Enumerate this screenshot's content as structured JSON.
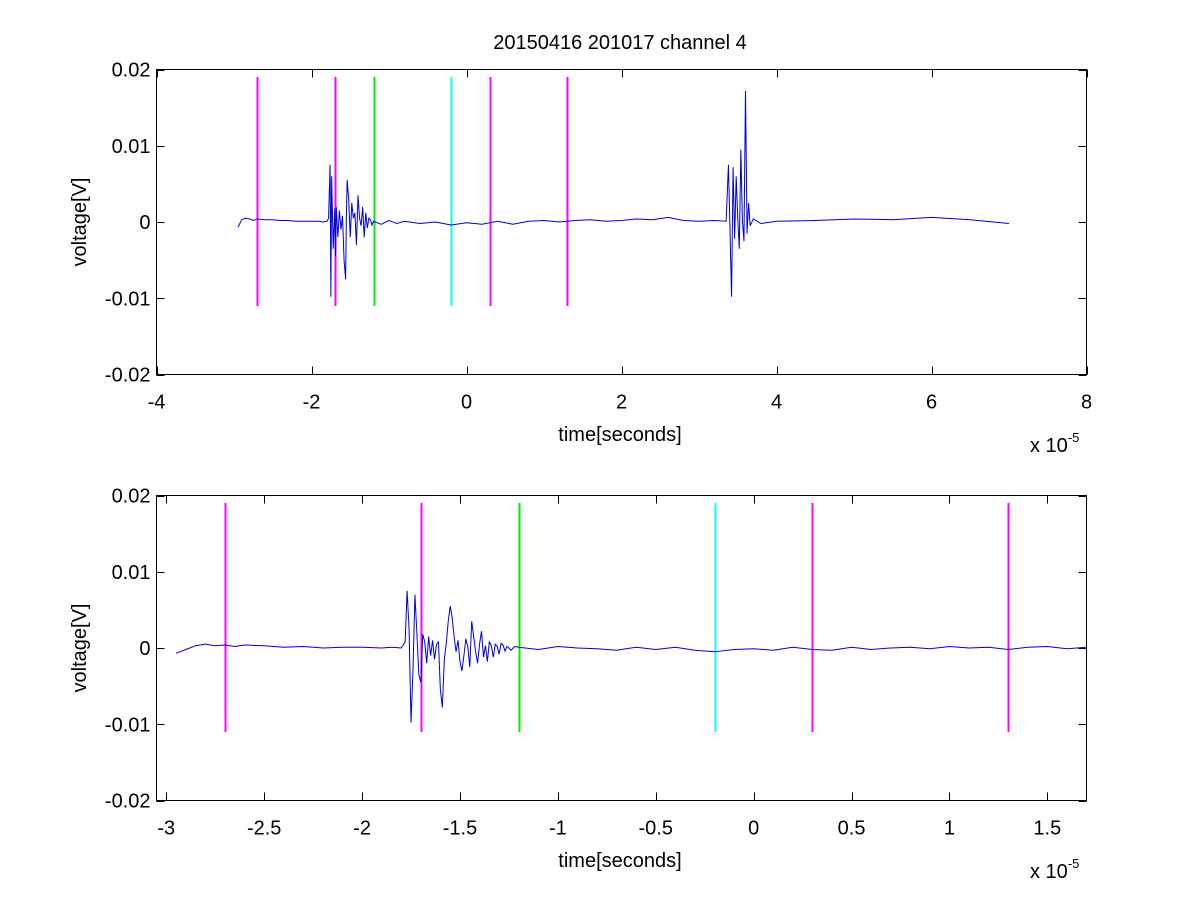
{
  "figure_title": "20150416 201017 channel 4",
  "colors": {
    "signal": "#0000dd",
    "magenta": "#ff00ff",
    "green": "#00ee00",
    "cyan": "#00ffff"
  },
  "chart_data": [
    {
      "type": "line",
      "title": "20150416 201017 channel 4",
      "xlabel": "time[seconds]",
      "ylabel": "voltage[V]",
      "x_multiplier": "x 10",
      "x_exponent": "-5",
      "xlim": [
        -4,
        8
      ],
      "ylim": [
        -0.02,
        0.02
      ],
      "x_ticks": [
        -4,
        -2,
        0,
        2,
        4,
        6,
        8
      ],
      "x_tick_labels": [
        "-4",
        "-2",
        "0",
        "2",
        "4",
        "6",
        "8"
      ],
      "y_ticks": [
        -0.02,
        -0.01,
        0,
        0.01,
        0.02
      ],
      "y_tick_labels": [
        "-0.02",
        "-0.01",
        "0",
        "0.01",
        "0.02"
      ],
      "grid": false,
      "series": [
        {
          "x": [
            -2.95,
            -2.9,
            -2.85,
            -2.8,
            -2.75,
            -2.7,
            -2.6,
            -2.5,
            -2.4,
            -2.3,
            -2.2,
            -2.1,
            -2.0,
            -1.9,
            -1.85,
            -1.8,
            -1.78,
            -1.76,
            -1.75,
            -1.74,
            -1.72,
            -1.7,
            -1.69,
            -1.68,
            -1.66,
            -1.64,
            -1.62,
            -1.6,
            -1.58,
            -1.56,
            -1.55,
            -1.54,
            -1.52,
            -1.5,
            -1.48,
            -1.46,
            -1.44,
            -1.42,
            -1.4,
            -1.38,
            -1.36,
            -1.34,
            -1.32,
            -1.3,
            -1.28,
            -1.26,
            -1.24,
            -1.22,
            -1.2,
            -1.1,
            -1.0,
            -0.9,
            -0.8,
            -0.6,
            -0.4,
            -0.2,
            0.0,
            0.2,
            0.4,
            0.6,
            0.8,
            1.0,
            1.2,
            1.4,
            1.6,
            1.8,
            2.0,
            2.2,
            2.4,
            2.6,
            2.8,
            3.0,
            3.2,
            3.35,
            3.38,
            3.4,
            3.42,
            3.44,
            3.46,
            3.48,
            3.5,
            3.52,
            3.54,
            3.56,
            3.58,
            3.6,
            3.62,
            3.64,
            3.66,
            3.7,
            3.8,
            4.0,
            4.5,
            5.0,
            5.5,
            6.0,
            6.5,
            7.0
          ],
          "y": [
            -0.0007,
            0.0003,
            0.0005,
            0.0004,
            0.0002,
            0.0004,
            0.0003,
            0.0003,
            0.0002,
            0.0002,
            0.0001,
            0.0001,
            0.0001,
            0.0001,
            0.0,
            0.0001,
            0.0005,
            0.0075,
            -0.0098,
            0.006,
            -0.0035,
            0.0018,
            -0.0045,
            0.002,
            -0.002,
            0.0015,
            -0.001,
            0.0008,
            -0.005,
            -0.0075,
            0.0006,
            0.0055,
            0.003,
            -0.002,
            0.0025,
            0.0005,
            0.0012,
            -0.003,
            0.0035,
            0.0005,
            -0.0005,
            0.002,
            -0.002,
            0.0012,
            -0.0008,
            0.0005,
            0.0003,
            -0.0004,
            0.0001,
            -0.0003,
            0.0002,
            -0.0002,
            0.0001,
            -0.0002,
            0.0,
            -0.0004,
            -0.0001,
            -0.0003,
            0.0001,
            -0.0003,
            0.0001,
            0.0002,
            0.0,
            0.0002,
            0.0003,
            0.0001,
            0.0002,
            0.0004,
            0.0003,
            0.0006,
            0.0002,
            0.0001,
            0.0002,
            0.0001,
            0.0075,
            -0.001,
            -0.0098,
            0.0072,
            -0.0022,
            0.006,
            0.0005,
            -0.0035,
            0.0095,
            0.0002,
            -0.0025,
            0.0172,
            -0.0015,
            0.0025,
            -0.0005,
            0.0004,
            -0.0002,
            0.0001,
            0.0002,
            0.0004,
            0.0003,
            0.0006,
            0.0003,
            -0.0002
          ]
        }
      ],
      "vertical_markers": [
        {
          "x": -2.7,
          "color": "magenta"
        },
        {
          "x": -1.7,
          "color": "magenta"
        },
        {
          "x": -1.2,
          "color": "green"
        },
        {
          "x": -0.2,
          "color": "cyan"
        },
        {
          "x": 0.3,
          "color": "magenta"
        },
        {
          "x": 1.3,
          "color": "magenta"
        }
      ],
      "marker_y_range": [
        -0.011,
        0.019
      ]
    },
    {
      "type": "line",
      "title": "",
      "xlabel": "time[seconds]",
      "ylabel": "voltage[V]",
      "x_multiplier": "x 10",
      "x_exponent": "-5",
      "xlim": [
        -3.05,
        1.7
      ],
      "ylim": [
        -0.02,
        0.02
      ],
      "x_ticks": [
        -3,
        -2.5,
        -2,
        -1.5,
        -1,
        -0.5,
        0,
        0.5,
        1,
        1.5
      ],
      "x_tick_labels": [
        "-3",
        "-2.5",
        "-2",
        "-1.5",
        "-1",
        "-0.5",
        "0",
        "0.5",
        "1",
        "1.5"
      ],
      "y_ticks": [
        -0.02,
        -0.01,
        0,
        0.01,
        0.02
      ],
      "y_tick_labels": [
        "-0.02",
        "-0.01",
        "0",
        "0.01",
        "0.02"
      ],
      "grid": false,
      "series": [
        {
          "x": [
            -2.95,
            -2.9,
            -2.85,
            -2.8,
            -2.75,
            -2.7,
            -2.65,
            -2.6,
            -2.5,
            -2.4,
            -2.3,
            -2.2,
            -2.1,
            -2.0,
            -1.9,
            -1.85,
            -1.8,
            -1.78,
            -1.77,
            -1.76,
            -1.75,
            -1.74,
            -1.73,
            -1.72,
            -1.71,
            -1.7,
            -1.69,
            -1.68,
            -1.67,
            -1.66,
            -1.65,
            -1.64,
            -1.63,
            -1.62,
            -1.61,
            -1.6,
            -1.59,
            -1.58,
            -1.57,
            -1.56,
            -1.55,
            -1.54,
            -1.53,
            -1.52,
            -1.51,
            -1.5,
            -1.49,
            -1.48,
            -1.47,
            -1.46,
            -1.45,
            -1.44,
            -1.43,
            -1.42,
            -1.41,
            -1.4,
            -1.39,
            -1.38,
            -1.37,
            -1.36,
            -1.35,
            -1.34,
            -1.33,
            -1.32,
            -1.31,
            -1.3,
            -1.29,
            -1.28,
            -1.27,
            -1.26,
            -1.25,
            -1.24,
            -1.22,
            -1.2,
            -1.1,
            -1.0,
            -0.9,
            -0.8,
            -0.7,
            -0.6,
            -0.5,
            -0.4,
            -0.3,
            -0.2,
            -0.1,
            0.0,
            0.1,
            0.2,
            0.3,
            0.4,
            0.5,
            0.6,
            0.7,
            0.8,
            0.9,
            1.0,
            1.1,
            1.2,
            1.3,
            1.4,
            1.5,
            1.6,
            1.7
          ],
          "y": [
            -0.0007,
            -0.0002,
            0.0003,
            0.0005,
            0.0003,
            0.0004,
            0.0002,
            0.0004,
            0.0003,
            0.0001,
            0.0002,
            0.0,
            0.0001,
            0.0001,
            0.0,
            0.0001,
            0.0,
            0.0008,
            0.0075,
            0.0025,
            -0.0098,
            -0.003,
            0.007,
            0.0018,
            -0.0035,
            -0.0045,
            0.0018,
            0.0008,
            -0.002,
            0.0015,
            -0.001,
            0.001,
            -0.0015,
            0.0005,
            0.0008,
            -0.0055,
            -0.0078,
            -0.0015,
            0.0006,
            0.0035,
            0.0055,
            0.004,
            0.0015,
            -0.0005,
            0.001,
            -0.0018,
            -0.003,
            -0.001,
            0.0012,
            0.0002,
            -0.0025,
            0.0035,
            0.0015,
            -0.0005,
            -0.002,
            0.0005,
            0.0022,
            -0.0012,
            0.0003,
            -0.0018,
            0.0008,
            0.0003,
            -0.0012,
            0.0005,
            0.0002,
            -0.0008,
            0.0006,
            0.0004,
            -0.0004,
            0.0002,
            0.0,
            -0.0003,
            0.0002,
            0.0001,
            -0.0002,
            0.0002,
            0.0,
            -0.0001,
            -0.0003,
            0.0001,
            -0.0002,
            0.0001,
            -0.0003,
            -0.0005,
            -0.0002,
            -0.0001,
            -0.0003,
            0.0001,
            -0.0002,
            -0.0003,
            0.0001,
            -0.0002,
            0.0,
            0.0001,
            -0.0001,
            0.0002,
            0.0,
            0.0001,
            -0.0002,
            0.0001,
            0.0002,
            -0.0001,
            0.0001
          ]
        }
      ],
      "vertical_markers": [
        {
          "x": -2.7,
          "color": "magenta"
        },
        {
          "x": -1.7,
          "color": "magenta"
        },
        {
          "x": -1.2,
          "color": "green"
        },
        {
          "x": -0.2,
          "color": "cyan"
        },
        {
          "x": 0.3,
          "color": "magenta"
        },
        {
          "x": 1.3,
          "color": "magenta"
        }
      ],
      "marker_y_range": [
        -0.011,
        0.019
      ]
    }
  ]
}
